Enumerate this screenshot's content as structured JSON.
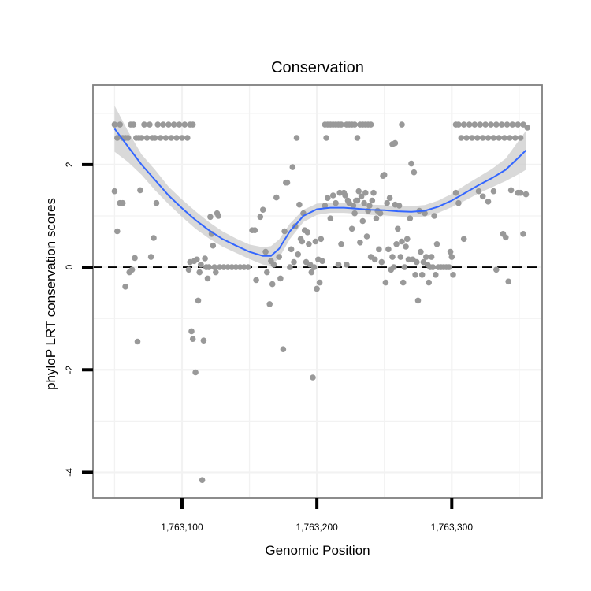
{
  "chart_data": {
    "type": "scatter",
    "title": "Conservation",
    "xlabel": "Genomic Position",
    "ylabel": "phyloP LRT conservation scores",
    "xlim": [
      1763034,
      1763367
    ],
    "ylim": [
      -4.5,
      3.55
    ],
    "x_ticks": [
      {
        "value": 1763100,
        "label": "1,763,100"
      },
      {
        "value": 1763200,
        "label": "1,763,200"
      },
      {
        "value": 1763300,
        "label": "1,763,300"
      }
    ],
    "y_ticks": [
      {
        "value": -4,
        "label": "-4"
      },
      {
        "value": -2,
        "label": "-2"
      },
      {
        "value": 0,
        "label": "0"
      },
      {
        "value": 2,
        "label": "2"
      }
    ],
    "grid": true,
    "reference_line": {
      "y": 0,
      "style": "dashed"
    },
    "colors": {
      "points": "#999999",
      "smooth_line": "#3366FF",
      "ribbon": "#CCCCCC",
      "panel_border": "#808080",
      "grid": "#F2F2F2"
    },
    "points": [
      [
        1763050,
        2.78
      ],
      [
        1763052,
        2.52
      ],
      [
        1763054,
        2.78
      ],
      [
        1763056,
        2.52
      ],
      [
        1763058,
        2.52
      ],
      [
        1763060,
        2.52
      ],
      [
        1763062,
        2.78
      ],
      [
        1763064,
        2.78
      ],
      [
        1763066,
        2.52
      ],
      [
        1763068,
        2.52
      ],
      [
        1763070,
        2.52
      ],
      [
        1763072,
        2.78
      ],
      [
        1763074,
        2.52
      ],
      [
        1763076,
        2.78
      ],
      [
        1763078,
        2.52
      ],
      [
        1763080,
        2.52
      ],
      [
        1763082,
        2.78
      ],
      [
        1763084,
        2.52
      ],
      [
        1763086,
        2.78
      ],
      [
        1763088,
        2.52
      ],
      [
        1763090,
        2.78
      ],
      [
        1763092,
        2.52
      ],
      [
        1763094,
        2.78
      ],
      [
        1763096,
        2.52
      ],
      [
        1763098,
        2.78
      ],
      [
        1763100,
        2.52
      ],
      [
        1763102,
        2.78
      ],
      [
        1763104,
        2.52
      ],
      [
        1763106,
        2.78
      ],
      [
        1763108,
        2.78
      ],
      [
        1763050,
        1.48
      ],
      [
        1763052,
        0.7
      ],
      [
        1763054,
        1.25
      ],
      [
        1763056,
        1.25
      ],
      [
        1763058,
        -0.38
      ],
      [
        1763061,
        -0.1
      ],
      [
        1763063,
        -0.05
      ],
      [
        1763065,
        0.18
      ],
      [
        1763067,
        -1.45
      ],
      [
        1763069,
        1.5
      ],
      [
        1763077,
        0.2
      ],
      [
        1763079,
        0.57
      ],
      [
        1763081,
        1.25
      ],
      [
        1763105,
        -0.05
      ],
      [
        1763106,
        0.1
      ],
      [
        1763107,
        -1.25
      ],
      [
        1763108,
        -1.4
      ],
      [
        1763109,
        0.12
      ],
      [
        1763110,
        -2.05
      ],
      [
        1763111,
        0.15
      ],
      [
        1763112,
        -0.65
      ],
      [
        1763113,
        -0.1
      ],
      [
        1763114,
        0.05
      ],
      [
        1763115,
        -4.15
      ],
      [
        1763116,
        -1.43
      ],
      [
        1763117,
        0.17
      ],
      [
        1763118,
        0.0
      ],
      [
        1763119,
        -0.22
      ],
      [
        1763120,
        0.0
      ],
      [
        1763121,
        0.98
      ],
      [
        1763122,
        0.65
      ],
      [
        1763123,
        0.42
      ],
      [
        1763124,
        0.0
      ],
      [
        1763125,
        -0.1
      ],
      [
        1763126,
        1.05
      ],
      [
        1763127,
        1.0
      ],
      [
        1763128,
        0.0
      ],
      [
        1763131,
        0.0
      ],
      [
        1763134,
        0.0
      ],
      [
        1763137,
        0.0
      ],
      [
        1763140,
        0.0
      ],
      [
        1763143,
        0.0
      ],
      [
        1763146,
        0.0
      ],
      [
        1763149,
        0.0
      ],
      [
        1763152,
        0.72
      ],
      [
        1763154,
        0.72
      ],
      [
        1763155,
        -0.25
      ],
      [
        1763158,
        0.98
      ],
      [
        1763160,
        1.12
      ],
      [
        1763162,
        0.3
      ],
      [
        1763163,
        -0.1
      ],
      [
        1763165,
        -0.72
      ],
      [
        1763166,
        0.12
      ],
      [
        1763167,
        -0.33
      ],
      [
        1763168,
        0.05
      ],
      [
        1763170,
        1.36
      ],
      [
        1763172,
        0.2
      ],
      [
        1763173,
        -0.22
      ],
      [
        1763175,
        -1.6
      ],
      [
        1763176,
        0.7
      ],
      [
        1763177,
        1.65
      ],
      [
        1763178,
        1.65
      ],
      [
        1763180,
        0.0
      ],
      [
        1763181,
        0.35
      ],
      [
        1763182,
        1.95
      ],
      [
        1763183,
        0.1
      ],
      [
        1763184,
        0.8
      ],
      [
        1763185,
        2.52
      ],
      [
        1763186,
        0.25
      ],
      [
        1763187,
        1.22
      ],
      [
        1763188,
        0.55
      ],
      [
        1763189,
        0.5
      ],
      [
        1763190,
        1.05
      ],
      [
        1763191,
        0.72
      ],
      [
        1763192,
        0.1
      ],
      [
        1763193,
        0.68
      ],
      [
        1763194,
        0.45
      ],
      [
        1763195,
        0.05
      ],
      [
        1763196,
        -0.1
      ],
      [
        1763197,
        -2.15
      ],
      [
        1763198,
        0.0
      ],
      [
        1763199,
        0.5
      ],
      [
        1763200,
        -0.42
      ],
      [
        1763201,
        0.15
      ],
      [
        1763202,
        -0.3
      ],
      [
        1763203,
        0.55
      ],
      [
        1763204,
        0.12
      ],
      [
        1763206,
        2.78
      ],
      [
        1763207,
        2.52
      ],
      [
        1763208,
        2.78
      ],
      [
        1763210,
        2.78
      ],
      [
        1763212,
        2.78
      ],
      [
        1763214,
        2.78
      ],
      [
        1763216,
        2.78
      ],
      [
        1763218,
        2.78
      ],
      [
        1763222,
        2.78
      ],
      [
        1763224,
        2.78
      ],
      [
        1763226,
        2.78
      ],
      [
        1763228,
        2.78
      ],
      [
        1763230,
        2.52
      ],
      [
        1763232,
        2.78
      ],
      [
        1763234,
        2.78
      ],
      [
        1763236,
        2.78
      ],
      [
        1763238,
        2.78
      ],
      [
        1763240,
        2.78
      ],
      [
        1763256,
        2.4
      ],
      [
        1763258,
        2.42
      ],
      [
        1763263,
        2.78
      ],
      [
        1763206,
        1.2
      ],
      [
        1763208,
        1.35
      ],
      [
        1763210,
        0.95
      ],
      [
        1763212,
        1.4
      ],
      [
        1763214,
        1.25
      ],
      [
        1763216,
        0.05
      ],
      [
        1763217,
        1.45
      ],
      [
        1763218,
        0.45
      ],
      [
        1763220,
        1.45
      ],
      [
        1763221,
        1.4
      ],
      [
        1763222,
        0.05
      ],
      [
        1763223,
        1.3
      ],
      [
        1763224,
        1.25
      ],
      [
        1763226,
        0.75
      ],
      [
        1763227,
        1.2
      ],
      [
        1763228,
        1.05
      ],
      [
        1763229,
        1.3
      ],
      [
        1763230,
        1.3
      ],
      [
        1763231,
        1.48
      ],
      [
        1763232,
        0.48
      ],
      [
        1763233,
        1.38
      ],
      [
        1763234,
        0.9
      ],
      [
        1763235,
        1.25
      ],
      [
        1763236,
        1.45
      ],
      [
        1763237,
        0.6
      ],
      [
        1763238,
        1.1
      ],
      [
        1763239,
        1.2
      ],
      [
        1763240,
        0.2
      ],
      [
        1763241,
        1.3
      ],
      [
        1763242,
        1.45
      ],
      [
        1763243,
        0.15
      ],
      [
        1763244,
        0.95
      ],
      [
        1763245,
        1.1
      ],
      [
        1763246,
        0.35
      ],
      [
        1763247,
        1.05
      ],
      [
        1763248,
        0.1
      ],
      [
        1763249,
        1.78
      ],
      [
        1763250,
        1.8
      ],
      [
        1763251,
        -0.3
      ],
      [
        1763252,
        1.25
      ],
      [
        1763253,
        0.35
      ],
      [
        1763254,
        1.35
      ],
      [
        1763255,
        -0.05
      ],
      [
        1763256,
        0.2
      ],
      [
        1763257,
        0.0
      ],
      [
        1763258,
        1.22
      ],
      [
        1763259,
        0.45
      ],
      [
        1763260,
        0.75
      ],
      [
        1763261,
        1.2
      ],
      [
        1763262,
        0.2
      ],
      [
        1763263,
        0.5
      ],
      [
        1763264,
        -0.3
      ],
      [
        1763265,
        0.0
      ],
      [
        1763266,
        0.4
      ],
      [
        1763267,
        0.55
      ],
      [
        1763268,
        0.15
      ],
      [
        1763269,
        0.95
      ],
      [
        1763270,
        2.02
      ],
      [
        1763271,
        0.15
      ],
      [
        1763272,
        1.85
      ],
      [
        1763273,
        -0.15
      ],
      [
        1763274,
        0.1
      ],
      [
        1763275,
        -0.65
      ],
      [
        1763276,
        1.1
      ],
      [
        1763277,
        0.3
      ],
      [
        1763278,
        -0.15
      ],
      [
        1763279,
        0.1
      ],
      [
        1763280,
        1.05
      ],
      [
        1763281,
        0.2
      ],
      [
        1763282,
        0.05
      ],
      [
        1763283,
        -0.3
      ],
      [
        1763284,
        0.0
      ],
      [
        1763285,
        0.2
      ],
      [
        1763286,
        0.0
      ],
      [
        1763287,
        1.0
      ],
      [
        1763288,
        -0.15
      ],
      [
        1763289,
        0.45
      ],
      [
        1763290,
        0.0
      ],
      [
        1763292,
        0.0
      ],
      [
        1763294,
        0.0
      ],
      [
        1763296,
        0.0
      ],
      [
        1763298,
        0.0
      ],
      [
        1763299,
        0.3
      ],
      [
        1763300,
        0.2
      ],
      [
        1763301,
        -0.15
      ],
      [
        1763303,
        1.45
      ],
      [
        1763305,
        1.25
      ],
      [
        1763309,
        0.55
      ],
      [
        1763303,
        2.78
      ],
      [
        1763305,
        2.78
      ],
      [
        1763307,
        2.52
      ],
      [
        1763309,
        2.78
      ],
      [
        1763311,
        2.52
      ],
      [
        1763313,
        2.78
      ],
      [
        1763315,
        2.52
      ],
      [
        1763317,
        2.78
      ],
      [
        1763319,
        2.52
      ],
      [
        1763321,
        2.78
      ],
      [
        1763323,
        2.52
      ],
      [
        1763325,
        2.78
      ],
      [
        1763327,
        2.52
      ],
      [
        1763329,
        2.78
      ],
      [
        1763331,
        2.52
      ],
      [
        1763333,
        2.78
      ],
      [
        1763335,
        2.52
      ],
      [
        1763337,
        2.78
      ],
      [
        1763339,
        2.52
      ],
      [
        1763341,
        2.78
      ],
      [
        1763343,
        2.52
      ],
      [
        1763345,
        2.78
      ],
      [
        1763347,
        2.52
      ],
      [
        1763349,
        2.78
      ],
      [
        1763351,
        2.52
      ],
      [
        1763353,
        2.78
      ],
      [
        1763356,
        2.72
      ],
      [
        1763320,
        1.48
      ],
      [
        1763323,
        1.38
      ],
      [
        1763327,
        1.28
      ],
      [
        1763331,
        1.48
      ],
      [
        1763333,
        -0.05
      ],
      [
        1763338,
        0.65
      ],
      [
        1763340,
        0.58
      ],
      [
        1763342,
        -0.28
      ],
      [
        1763344,
        1.5
      ],
      [
        1763349,
        1.45
      ],
      [
        1763351,
        1.45
      ],
      [
        1763353,
        0.65
      ],
      [
        1763355,
        1.42
      ]
    ],
    "smooth": {
      "x": [
        1763050,
        1763060,
        1763070,
        1763080,
        1763090,
        1763100,
        1763110,
        1763120,
        1763130,
        1763140,
        1763150,
        1763160,
        1763166,
        1763172,
        1763180,
        1763190,
        1763200,
        1763210,
        1763220,
        1763230,
        1763240,
        1763250,
        1763260,
        1763270,
        1763280,
        1763290,
        1763300,
        1763310,
        1763320,
        1763330,
        1763340,
        1763350,
        1763355
      ],
      "y": [
        2.7,
        2.35,
        2.0,
        1.7,
        1.4,
        1.15,
        0.92,
        0.72,
        0.55,
        0.42,
        0.3,
        0.22,
        0.22,
        0.36,
        0.7,
        1.0,
        1.13,
        1.16,
        1.16,
        1.14,
        1.12,
        1.11,
        1.09,
        1.08,
        1.1,
        1.18,
        1.3,
        1.45,
        1.6,
        1.74,
        1.9,
        2.15,
        2.28
      ],
      "lower": [
        2.25,
        2.05,
        1.8,
        1.5,
        1.23,
        0.98,
        0.75,
        0.56,
        0.4,
        0.28,
        0.16,
        0.05,
        0.03,
        0.18,
        0.55,
        0.88,
        1.02,
        1.06,
        1.06,
        1.04,
        1.02,
        1.01,
        0.99,
        0.97,
        0.99,
        1.06,
        1.17,
        1.3,
        1.44,
        1.56,
        1.68,
        1.82,
        1.9
      ],
      "upper": [
        3.15,
        2.65,
        2.2,
        1.9,
        1.57,
        1.32,
        1.09,
        0.88,
        0.7,
        0.56,
        0.44,
        0.39,
        0.41,
        0.54,
        0.85,
        1.12,
        1.24,
        1.26,
        1.26,
        1.24,
        1.22,
        1.21,
        1.19,
        1.19,
        1.21,
        1.3,
        1.43,
        1.6,
        1.76,
        1.92,
        2.12,
        2.48,
        2.66
      ]
    }
  }
}
